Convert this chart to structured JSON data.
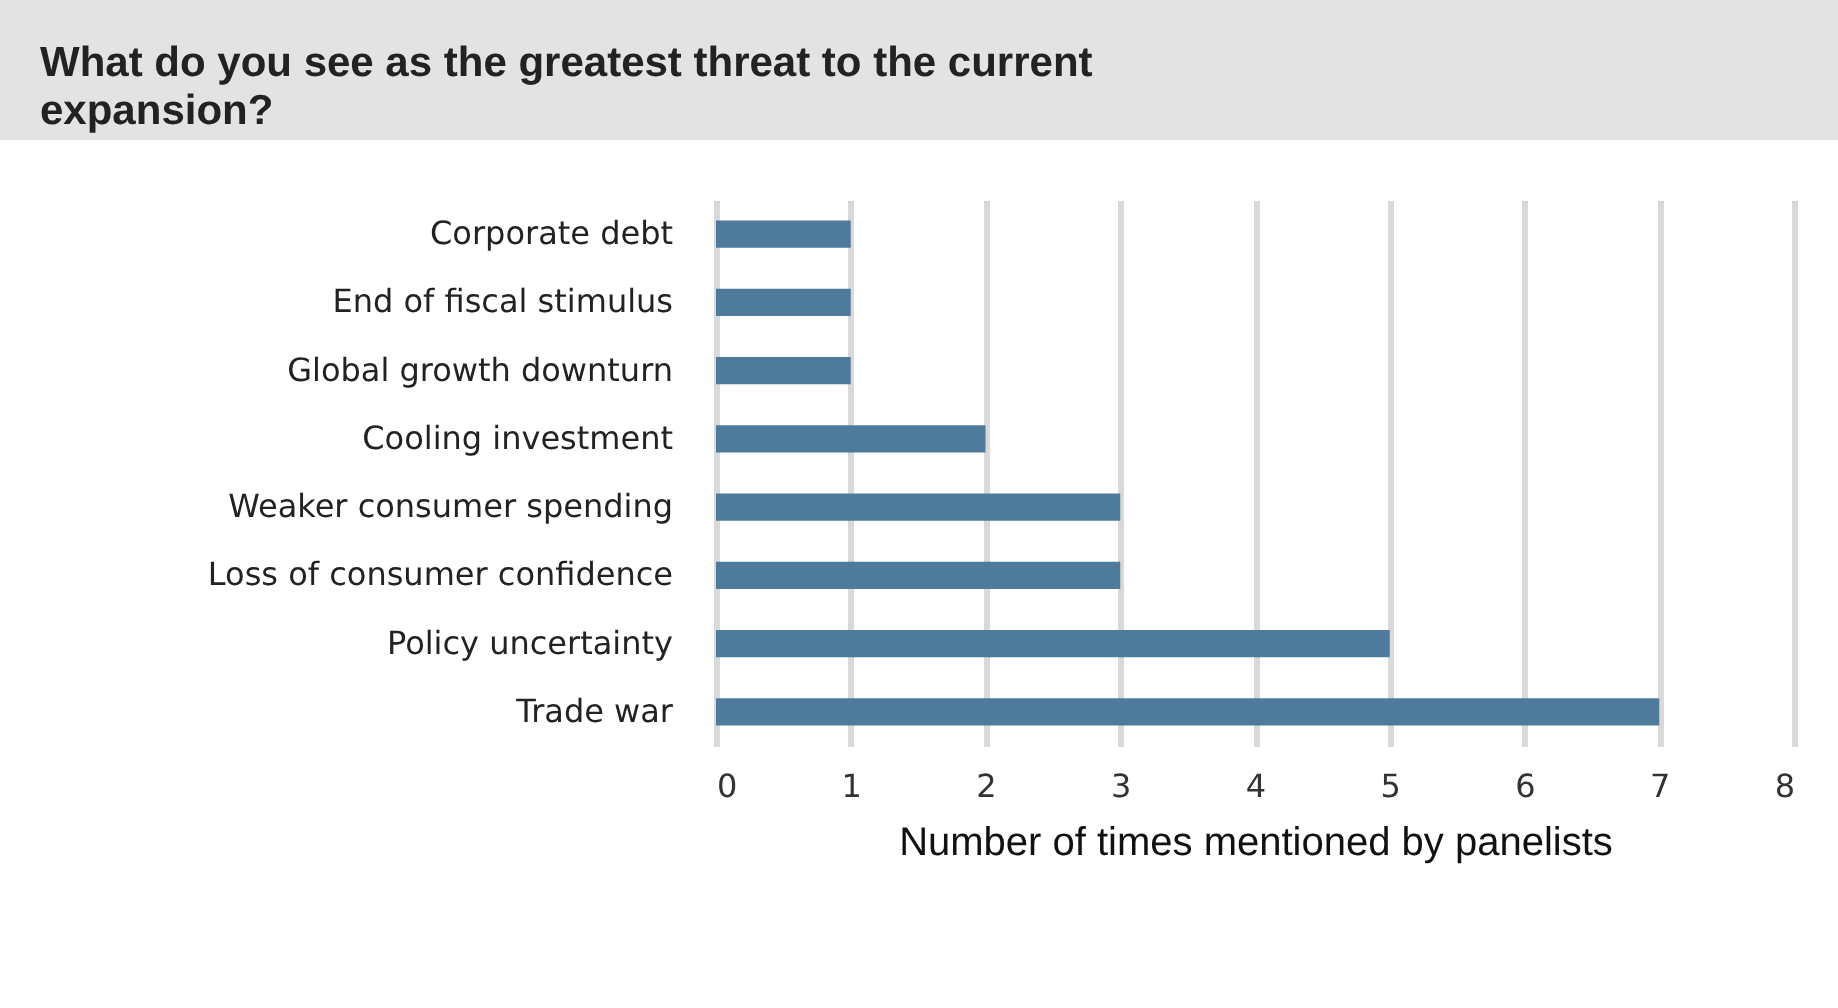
{
  "chart_data": {
    "type": "bar",
    "orientation": "horizontal",
    "title": "What do you see as the greatest threat to the current expansion?",
    "xlabel": "Number of times mentioned by panelists",
    "categories": [
      "Corporate debt",
      "End of fiscal stimulus",
      "Global growth downturn",
      "Cooling investment",
      "Weaker consumer spending",
      "Loss of consumer confidence",
      "Policy uncertainty",
      "Trade war"
    ],
    "values": [
      1,
      1,
      1,
      2,
      3,
      3,
      5,
      7
    ],
    "color": "#4e7b9b",
    "xlim": [
      0,
      8
    ],
    "xticks": [
      0,
      1,
      2,
      3,
      4,
      5,
      6,
      7,
      8
    ],
    "grid": "x"
  }
}
